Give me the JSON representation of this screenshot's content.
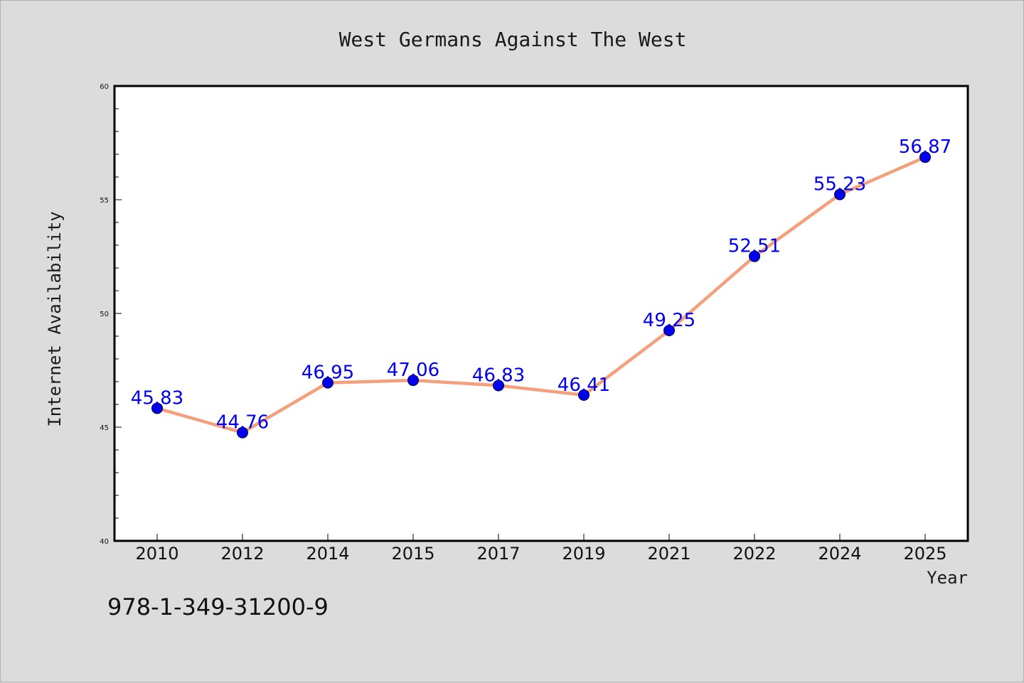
{
  "chart_data": {
    "type": "line",
    "title": "West Germans Against The West",
    "xlabel": "Year",
    "ylabel": "Internet Availability",
    "x": [
      "2010",
      "2012",
      "2014",
      "2015",
      "2017",
      "2019",
      "2021",
      "2022",
      "2024",
      "2025"
    ],
    "series": [
      {
        "values": [
          45.83,
          44.76,
          46.95,
          47.06,
          46.83,
          46.41,
          49.25,
          52.51,
          55.23,
          56.87
        ],
        "line_color": "#f4a07c",
        "marker_color": "#0000ee",
        "label_color": "#0000ee"
      }
    ],
    "data_labels": [
      "45.83",
      "44.76",
      "46.95",
      "47.06",
      "46.83",
      "46.41",
      "49.25",
      "52.51",
      "55.23",
      "56.87"
    ],
    "ylim": [
      40,
      60
    ],
    "yticks": [
      "40",
      "45",
      "50",
      "55",
      "60"
    ],
    "grid": false,
    "legend": false
  },
  "annotation": {
    "isbn": "978-1-349-31200-9"
  },
  "colors": {
    "background": "#dcdcdc",
    "plot_background": "#ffffff",
    "axes": "#000000"
  }
}
